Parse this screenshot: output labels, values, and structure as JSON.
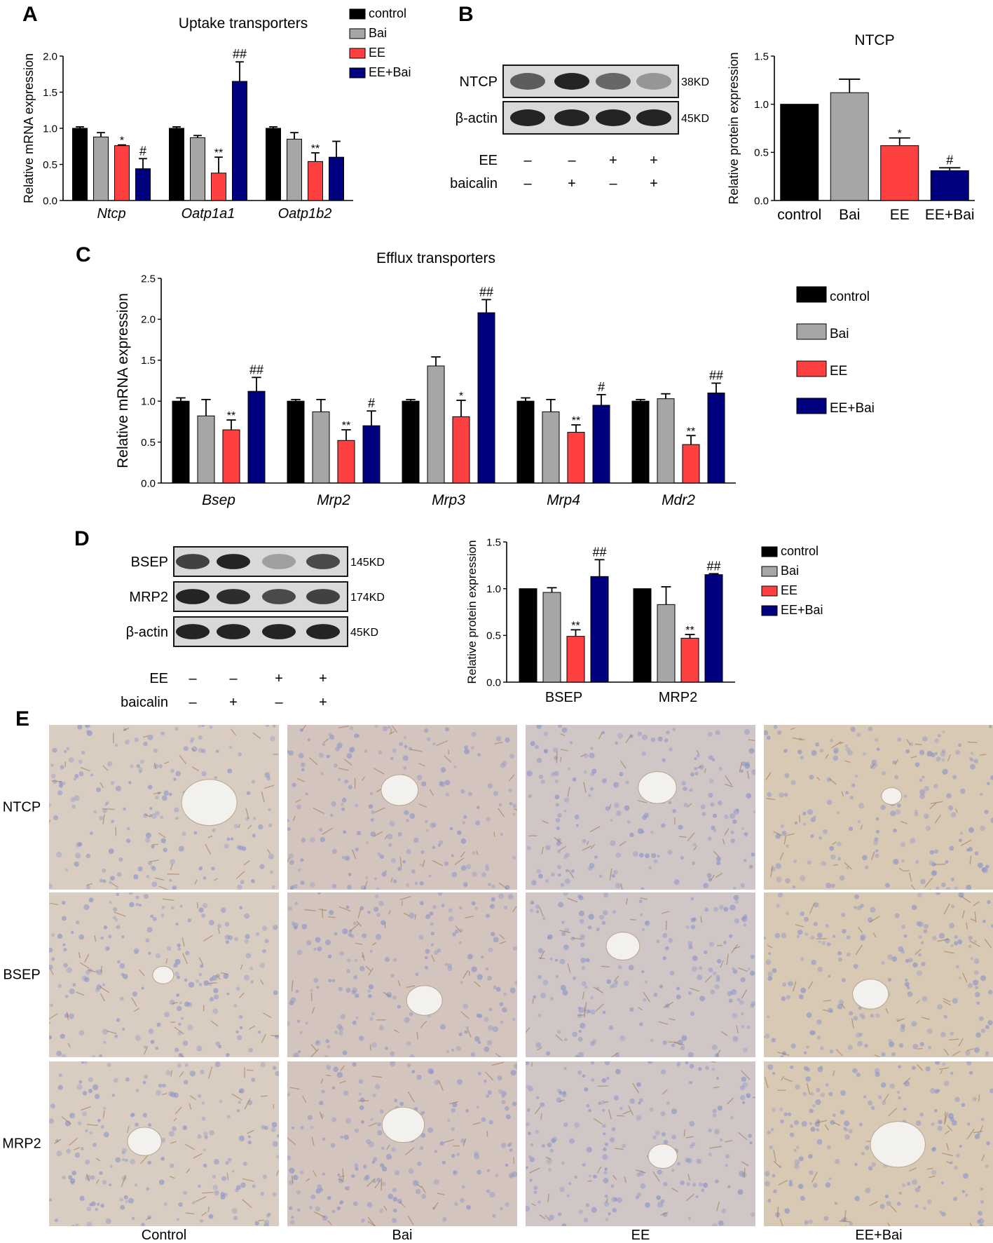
{
  "colors": {
    "control": "#000000",
    "Bai": "#a6a6a6",
    "EE": "#ff4040",
    "EE+Bai": "#00007f",
    "blot_bg": "#d9d9d9",
    "band": "#1a1a1a",
    "tissue_bg": "#d7cbbf",
    "tissue_nuclei": "#8d95c8",
    "tissue_stain": "#9a7553"
  },
  "legend": [
    "control",
    "Bai",
    "EE",
    "EE+Bai"
  ],
  "panels": {
    "A": {
      "letter": "A",
      "chart_data": {
        "type": "bar",
        "title": "Uptake transporters",
        "ylabel": "Relative mRNA expression",
        "xlabel": "",
        "ylim": [
          0,
          2.0
        ],
        "yticks": [
          "0.0",
          "0.5",
          "1.0",
          "1.5",
          "2.0"
        ],
        "categories": [
          "Ntcp",
          "Oatp1a1",
          "Oatp1b2"
        ],
        "series": [
          {
            "name": "control",
            "values": [
              1.0,
              1.0,
              1.0
            ],
            "errors": [
              0.02,
              0.02,
              0.02
            ],
            "marks": [
              "",
              "",
              ""
            ]
          },
          {
            "name": "Bai",
            "values": [
              0.88,
              0.87,
              0.85
            ],
            "errors": [
              0.06,
              0.03,
              0.09
            ],
            "marks": [
              "",
              "",
              ""
            ]
          },
          {
            "name": "EE",
            "values": [
              0.76,
              0.38,
              0.54
            ],
            "errors": [
              0.01,
              0.22,
              0.12
            ],
            "marks": [
              "*",
              "**",
              "**"
            ]
          },
          {
            "name": "EE+Bai",
            "values": [
              0.44,
              1.65,
              0.6
            ],
            "errors": [
              0.14,
              0.27,
              0.22
            ],
            "marks": [
              "#",
              "##",
              ""
            ]
          }
        ]
      }
    },
    "B": {
      "letter": "B",
      "blot": {
        "rows": [
          {
            "name": "NTCP",
            "size": "38KD",
            "intensity": [
              0.65,
              0.95,
              0.6,
              0.35
            ]
          },
          {
            "name": "β-actin",
            "size": "45KD",
            "intensity": [
              0.95,
              0.95,
              0.95,
              0.95
            ]
          }
        ],
        "conditions": [
          {
            "name": "EE",
            "values": [
              "–",
              "–",
              "+",
              "+"
            ]
          },
          {
            "name": "baicalin",
            "values": [
              "–",
              "+",
              "–",
              "+"
            ]
          }
        ]
      },
      "chart_data": {
        "type": "bar",
        "title": "NTCP",
        "ylabel": "Relative protein expression",
        "xlabel": "",
        "ylim": [
          0,
          1.5
        ],
        "yticks": [
          "0.0",
          "0.5",
          "1.0",
          "1.5"
        ],
        "categories": [
          "control",
          "Bai",
          "EE",
          "EE+Bai"
        ],
        "series": [
          {
            "values": [
              1.0,
              1.12,
              0.57,
              0.31
            ],
            "errors": [
              0.0,
              0.14,
              0.08,
              0.03
            ],
            "marks": [
              "",
              "",
              "*",
              "#"
            ]
          }
        ]
      }
    },
    "C": {
      "letter": "C",
      "chart_data": {
        "type": "bar",
        "title": "Efflux transporters",
        "ylabel": "Relative mRNA expression",
        "xlabel": "",
        "ylim": [
          0,
          2.5
        ],
        "yticks": [
          "0.0",
          "0.5",
          "1.0",
          "1.5",
          "2.0",
          "2.5"
        ],
        "categories": [
          "Bsep",
          "Mrp2",
          "Mrp3",
          "Mrp4",
          "Mdr2"
        ],
        "series": [
          {
            "name": "control",
            "values": [
              1.0,
              1.0,
              1.0,
              1.0,
              1.0
            ],
            "errors": [
              0.04,
              0.02,
              0.02,
              0.04,
              0.02
            ],
            "marks": [
              "",
              "",
              "",
              "",
              ""
            ]
          },
          {
            "name": "Bai",
            "values": [
              0.82,
              0.87,
              1.43,
              0.87,
              1.03
            ],
            "errors": [
              0.2,
              0.15,
              0.11,
              0.15,
              0.06
            ],
            "marks": [
              "",
              "",
              "",
              "",
              ""
            ]
          },
          {
            "name": "EE",
            "values": [
              0.65,
              0.52,
              0.81,
              0.62,
              0.47
            ],
            "errors": [
              0.12,
              0.13,
              0.2,
              0.09,
              0.11
            ],
            "marks": [
              "**",
              "**",
              "*",
              "**",
              "**"
            ]
          },
          {
            "name": "EE+Bai",
            "values": [
              1.12,
              0.7,
              2.08,
              0.95,
              1.1
            ],
            "errors": [
              0.17,
              0.18,
              0.16,
              0.13,
              0.12
            ],
            "marks": [
              "##",
              "#",
              "##",
              "#",
              "##"
            ]
          }
        ]
      }
    },
    "D": {
      "letter": "D",
      "blot": {
        "rows": [
          {
            "name": "BSEP",
            "size": "145KD",
            "intensity": [
              0.8,
              0.95,
              0.3,
              0.75
            ]
          },
          {
            "name": "MRP2",
            "size": "174KD",
            "intensity": [
              0.95,
              0.9,
              0.75,
              0.8
            ]
          },
          {
            "name": "β-actin",
            "size": "45KD",
            "intensity": [
              0.95,
              0.95,
              0.95,
              0.95
            ]
          }
        ],
        "conditions": [
          {
            "name": "EE",
            "values": [
              "–",
              "–",
              "+",
              "+"
            ]
          },
          {
            "name": "baicalin",
            "values": [
              "–",
              "+",
              "–",
              "+"
            ]
          }
        ]
      },
      "chart_data": {
        "type": "bar",
        "title": "",
        "ylabel": "Relative protein expression",
        "xlabel": "",
        "ylim": [
          0,
          1.5
        ],
        "yticks": [
          "0.0",
          "0.5",
          "1.0",
          "1.5"
        ],
        "categories": [
          "BSEP",
          "MRP2"
        ],
        "series": [
          {
            "name": "control",
            "values": [
              1.0,
              1.0
            ],
            "errors": [
              0.0,
              0.0
            ],
            "marks": [
              "",
              ""
            ]
          },
          {
            "name": "Bai",
            "values": [
              0.96,
              0.83
            ],
            "errors": [
              0.05,
              0.19
            ],
            "marks": [
              "",
              ""
            ]
          },
          {
            "name": "EE",
            "values": [
              0.49,
              0.47
            ],
            "errors": [
              0.07,
              0.04
            ],
            "marks": [
              "**",
              "**"
            ]
          },
          {
            "name": "EE+Bai",
            "values": [
              1.13,
              1.15
            ],
            "errors": [
              0.18,
              0.01
            ],
            "marks": [
              "##",
              "##"
            ]
          }
        ]
      }
    },
    "E": {
      "letter": "E",
      "rows": [
        "NTCP",
        "BSEP",
        "MRP2"
      ],
      "cols": [
        "Control",
        "Bai",
        "EE",
        "EE+Bai"
      ]
    }
  }
}
